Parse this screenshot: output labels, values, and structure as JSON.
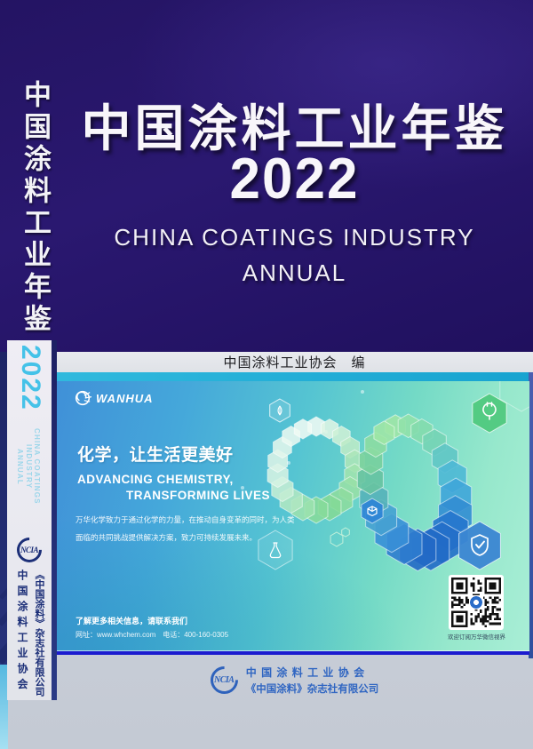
{
  "spine": {
    "title": "中国涂料工业年鉴",
    "year": "2022",
    "subtitle_en_line1": "CHINA COATINGS INDUSTRY",
    "subtitle_en_line2": "ANNUAL",
    "logo_text": "NCIA",
    "publisher": "《中国涂料》杂志社有限公司",
    "association": "中国涂料工业协会"
  },
  "cover": {
    "title": "中国涂料工业年鉴",
    "year": "2022",
    "subtitle_line1": "CHINA COATINGS INDUSTRY",
    "subtitle_line2": "ANNUAL",
    "editor": "中国涂料工业协会　编"
  },
  "banner": {
    "brand": "WANHUA",
    "slogan_cn": "化学，让生活更美好",
    "slogan_en_line1": "ADVANCING CHEMISTRY,",
    "slogan_en_line2": "TRANSFORMING LIVES",
    "body_line1": "万华化学致力于通过化学的力量，在推动自身变革的同时，为人类",
    "body_line2": "面临的共同挑战提供解决方案，致力可持续发展未来。",
    "contact_title": "了解更多相关信息，请联系我们",
    "contact_info": "网址：www.whchem.com　电话：400-160-0305",
    "qr_caption": "欢迎订阅万华微信视界"
  },
  "footer": {
    "logo_text": "NCIA",
    "association": "中 国 涂 料 工 业 协 会",
    "publisher": "《中国涂料》杂志社有限公司"
  },
  "colors": {
    "top_background": "#2a1870",
    "spine_year_cyan": "#45c2e8",
    "spine_navy": "#1c2f78",
    "banner_blue": "#4090d8",
    "banner_green": "#a9eed6",
    "banner_border_blue": "#1b1bcf",
    "footer_blue": "#2e62bc"
  }
}
